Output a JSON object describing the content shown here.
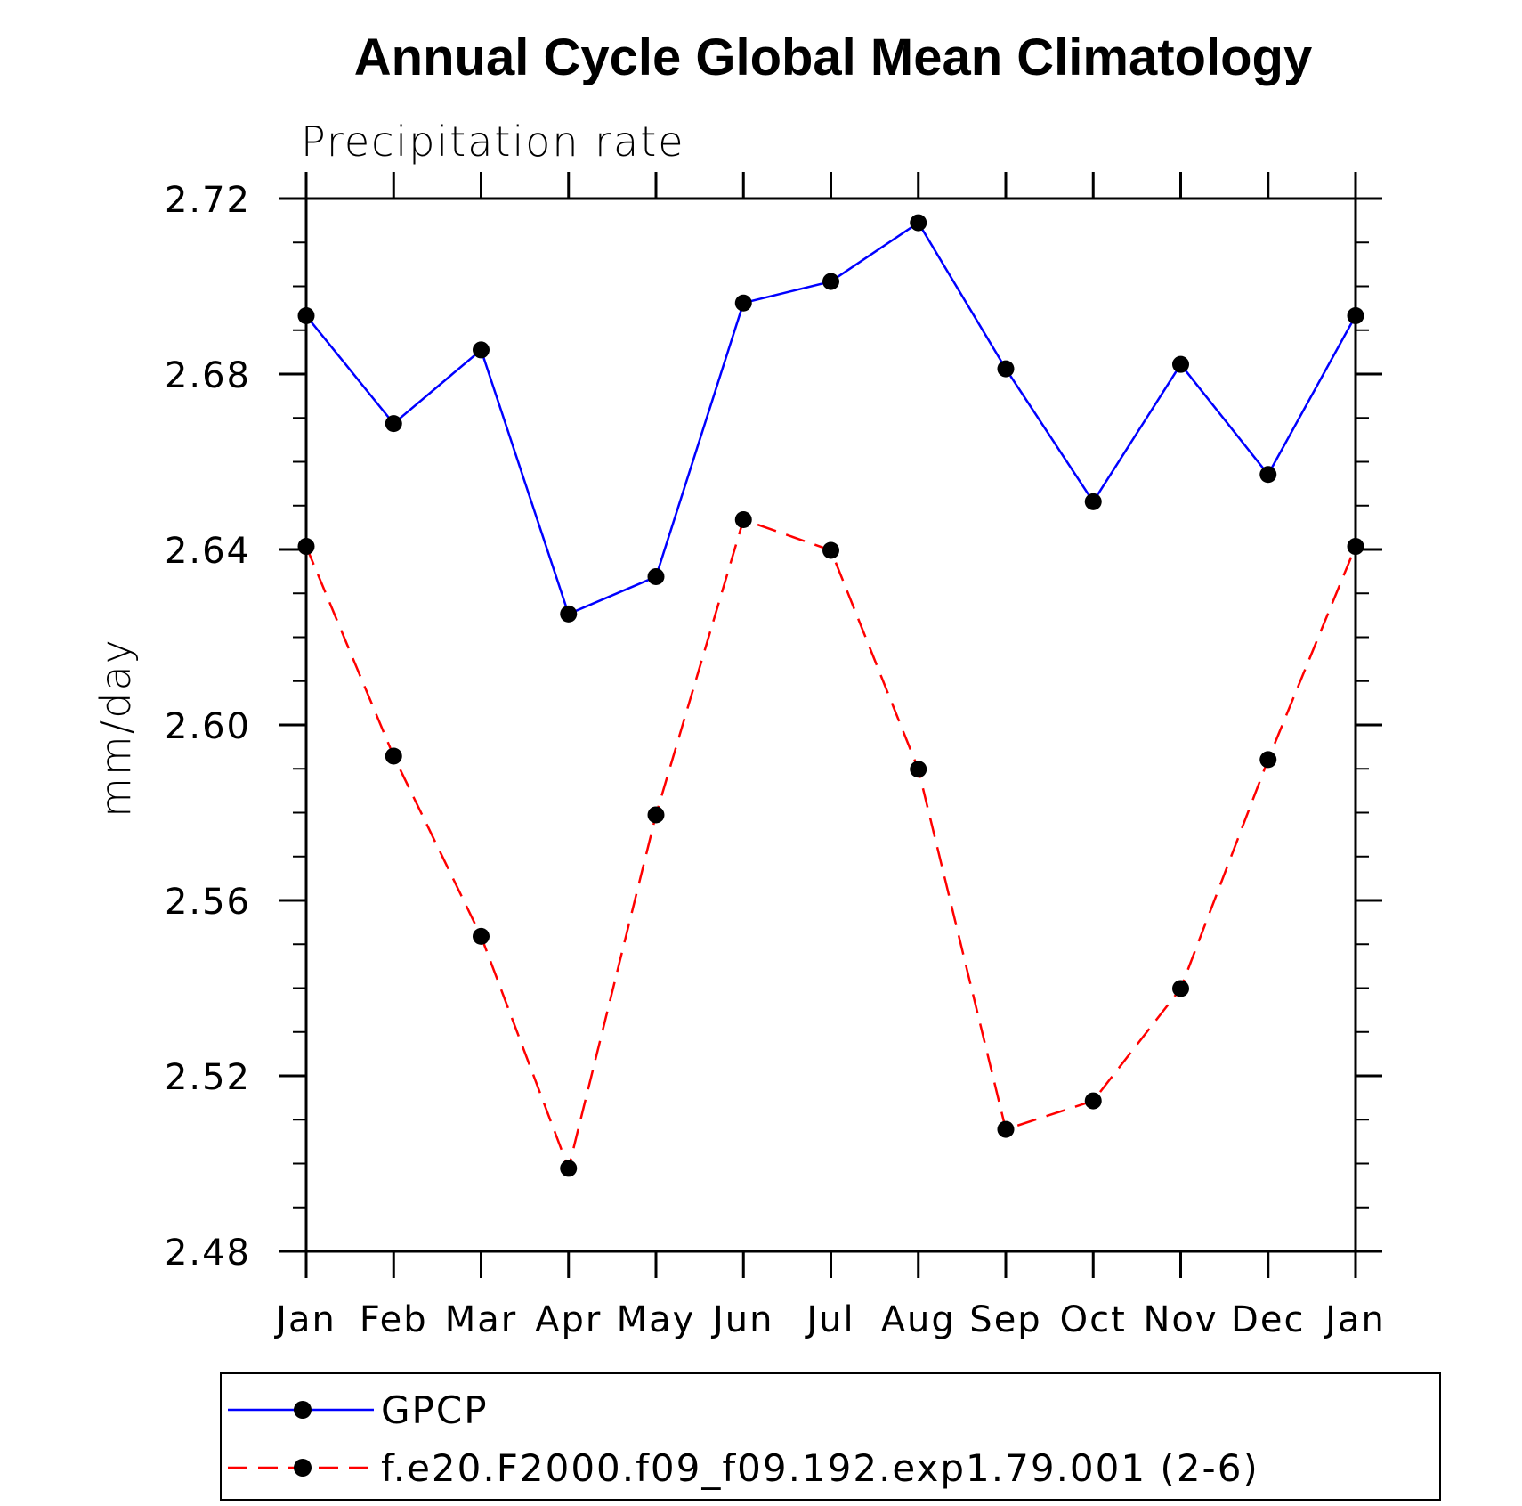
{
  "chart_data": {
    "type": "line",
    "title": "Annual Cycle Global Mean Climatology",
    "subtitle": "Precipitation rate",
    "xlabel": "",
    "ylabel": "mm/day",
    "categories": [
      "Jan",
      "Feb",
      "Mar",
      "Apr",
      "May",
      "Jun",
      "Jul",
      "Aug",
      "Sep",
      "Oct",
      "Nov",
      "Dec",
      "Jan"
    ],
    "ylim": [
      2.48,
      2.72
    ],
    "yticks": [
      "2.48",
      "2.52",
      "2.56",
      "2.60",
      "2.64",
      "2.68",
      "2.72"
    ],
    "series": [
      {
        "name": "GPCP",
        "color": "#0000ff",
        "line_style": "solid",
        "values": [
          2.6933,
          2.6687,
          2.6855,
          2.6253,
          2.6338,
          2.6962,
          2.7011,
          2.7145,
          2.6812,
          2.6509,
          2.6822,
          2.6571,
          2.6933
        ]
      },
      {
        "name": "f.e20.F2000.f09_f09.192.exp1.79.001 (2-6)",
        "color": "#ff0000",
        "line_style": "dashed",
        "values": [
          2.6407,
          2.5929,
          2.5518,
          2.4989,
          2.5795,
          2.6468,
          2.6398,
          2.5899,
          2.5078,
          2.5143,
          2.5399,
          2.5921,
          2.6407
        ]
      }
    ],
    "grid": false,
    "legend_position": "bottom"
  }
}
